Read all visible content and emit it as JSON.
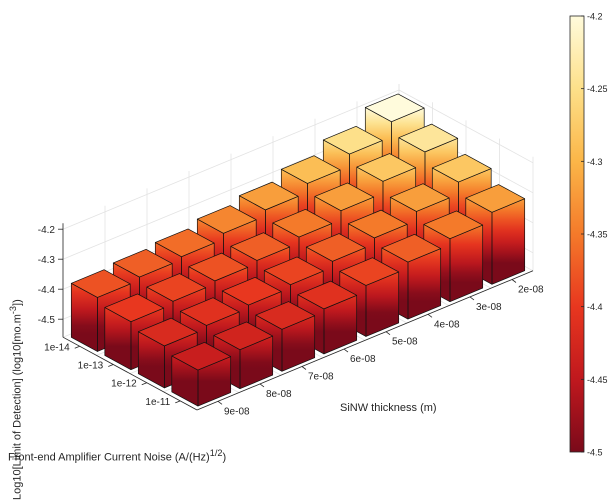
{
  "chart_data": {
    "type": "bar3d",
    "xlabel": "Front-end Amplifier Current Noise (A/(Hz)",
    "xlabel_sup": "1/2",
    "xlabel_end": ")",
    "ylabel": "SiNW thickness (m)",
    "zlabel": "Log10[Limit of Detection] (log10[mo.m",
    "zlabel_sup": "-3",
    "zlabel_end": "])",
    "x_categories": [
      "1e-14",
      "1e-13",
      "1e-12",
      "1e-11"
    ],
    "y_categories": [
      "2e-08",
      "3e-08",
      "4e-08",
      "5e-08",
      "6e-08",
      "7e-08",
      "8e-08",
      "9e-08"
    ],
    "y_tick_labels": [
      "2e-08",
      "3e-08",
      "4e-08",
      "5e-08",
      "6e-08",
      "7e-08",
      "8e-08",
      "9e-08"
    ],
    "z_ticks": [
      "-4.2",
      "-4.3",
      "-4.4",
      "-4.5"
    ],
    "zlim": [
      -4.56,
      -4.18
    ],
    "colorbar": {
      "min": -4.5,
      "max": -4.2,
      "ticks": [
        "-4.2",
        "-4.25",
        "-4.3",
        "-4.35",
        "-4.4",
        "-4.45",
        "-4.5"
      ]
    },
    "values": [
      [
        -4.2,
        -4.25,
        -4.29,
        -4.32,
        -4.34,
        -4.36,
        -4.37,
        -4.38
      ],
      [
        -4.24,
        -4.28,
        -4.32,
        -4.35,
        -4.37,
        -4.38,
        -4.39,
        -4.4
      ],
      [
        -4.28,
        -4.32,
        -4.35,
        -4.37,
        -4.39,
        -4.4,
        -4.41,
        -4.42
      ],
      [
        -4.32,
        -4.35,
        -4.37,
        -4.39,
        -4.41,
        -4.42,
        -4.43,
        -4.44
      ]
    ],
    "grid": true,
    "colormap": [
      "#7a0a1a",
      "#c0181e",
      "#e8371f",
      "#f47a2a",
      "#fbb648",
      "#fde08a",
      "#fffbdc"
    ]
  }
}
